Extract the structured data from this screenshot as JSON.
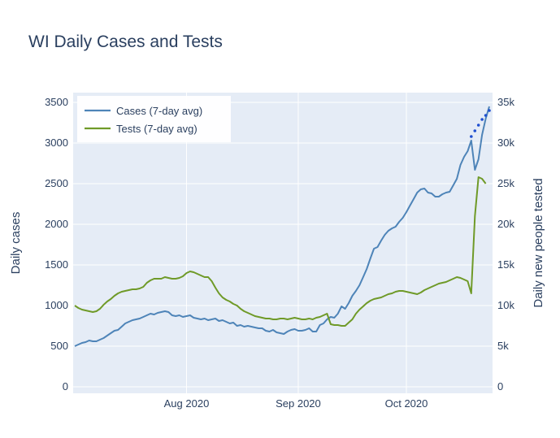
{
  "chart_data": {
    "type": "line",
    "title": "WI Daily Cases and Tests",
    "xlabel": "",
    "ylabel": "Daily cases",
    "y2label": "Daily new people tested",
    "x_start": "2020-07-01",
    "x_ticks": [
      "Aug 2020",
      "Sep 2020",
      "Oct 2020"
    ],
    "ylim": [
      0,
      3600
    ],
    "y2lim": [
      0,
      36000
    ],
    "y_ticks": [
      "0",
      "500",
      "1000",
      "1500",
      "2000",
      "2500",
      "3000",
      "3500"
    ],
    "y2_ticks": [
      "0",
      "5k",
      "10k",
      "15k",
      "20k",
      "25k",
      "30k",
      "35k"
    ],
    "grid": true,
    "legend": "top-left",
    "colors": {
      "cases": "#4e84b8",
      "tests": "#6f9a28",
      "projection": "#1f4fd0",
      "plot_bg": "#e5ecf6"
    },
    "series": [
      {
        "name": "Cases (7-day avg)",
        "axis": "left",
        "values": [
          500,
          520,
          540,
          550,
          570,
          560,
          560,
          580,
          600,
          630,
          660,
          690,
          700,
          740,
          780,
          800,
          820,
          830,
          840,
          860,
          880,
          900,
          890,
          910,
          920,
          930,
          920,
          880,
          870,
          880,
          860,
          870,
          880,
          850,
          840,
          830,
          840,
          820,
          830,
          840,
          810,
          820,
          800,
          780,
          790,
          750,
          760,
          740,
          750,
          740,
          730,
          720,
          720,
          690,
          680,
          700,
          670,
          660,
          650,
          680,
          700,
          710,
          690,
          690,
          700,
          720,
          680,
          680,
          760,
          780,
          830,
          860,
          850,
          900,
          990,
          960,
          1030,
          1120,
          1180,
          1250,
          1350,
          1450,
          1580,
          1700,
          1720,
          1800,
          1870,
          1920,
          1950,
          1970,
          2030,
          2080,
          2150,
          2230,
          2310,
          2390,
          2430,
          2440,
          2390,
          2380,
          2340,
          2340,
          2370,
          2390,
          2400,
          2480,
          2560,
          2730,
          2830,
          2900,
          3030,
          2670,
          2800,
          3100,
          3300,
          3450
        ]
      },
      {
        "name": "Tests (7-day avg)",
        "axis": "right",
        "values": [
          10000,
          9700,
          9500,
          9400,
          9300,
          9200,
          9300,
          9600,
          10100,
          10500,
          10800,
          11200,
          11500,
          11700,
          11800,
          11900,
          12000,
          12000,
          12100,
          12300,
          12800,
          13100,
          13300,
          13300,
          13300,
          13500,
          13400,
          13300,
          13300,
          13400,
          13600,
          14000,
          14200,
          14100,
          13900,
          13700,
          13500,
          13500,
          13000,
          12200,
          11500,
          11000,
          10700,
          10500,
          10200,
          10000,
          9600,
          9300,
          9100,
          8900,
          8700,
          8600,
          8500,
          8400,
          8400,
          8300,
          8300,
          8400,
          8400,
          8300,
          8400,
          8500,
          8400,
          8300,
          8300,
          8400,
          8300,
          8500,
          8600,
          8800,
          9000,
          7700,
          7600,
          7600,
          7500,
          7500,
          7900,
          8300,
          9000,
          9500,
          9900,
          10300,
          10600,
          10800,
          10900,
          11000,
          11200,
          11400,
          11500,
          11700,
          11800,
          11800,
          11700,
          11600,
          11500,
          11400,
          11600,
          11900,
          12100,
          12300,
          12500,
          12700,
          12800,
          12900,
          13100,
          13300,
          13500,
          13400,
          13200,
          13000,
          11500,
          21000,
          25800,
          25600,
          25000
        ]
      },
      {
        "name": "",
        "axis": "left",
        "style": "dotted",
        "x_index": [
          110,
          111,
          112,
          113,
          114,
          115
        ],
        "values": [
          3080,
          3150,
          3220,
          3290,
          3340,
          3400
        ]
      }
    ],
    "annotations": []
  }
}
